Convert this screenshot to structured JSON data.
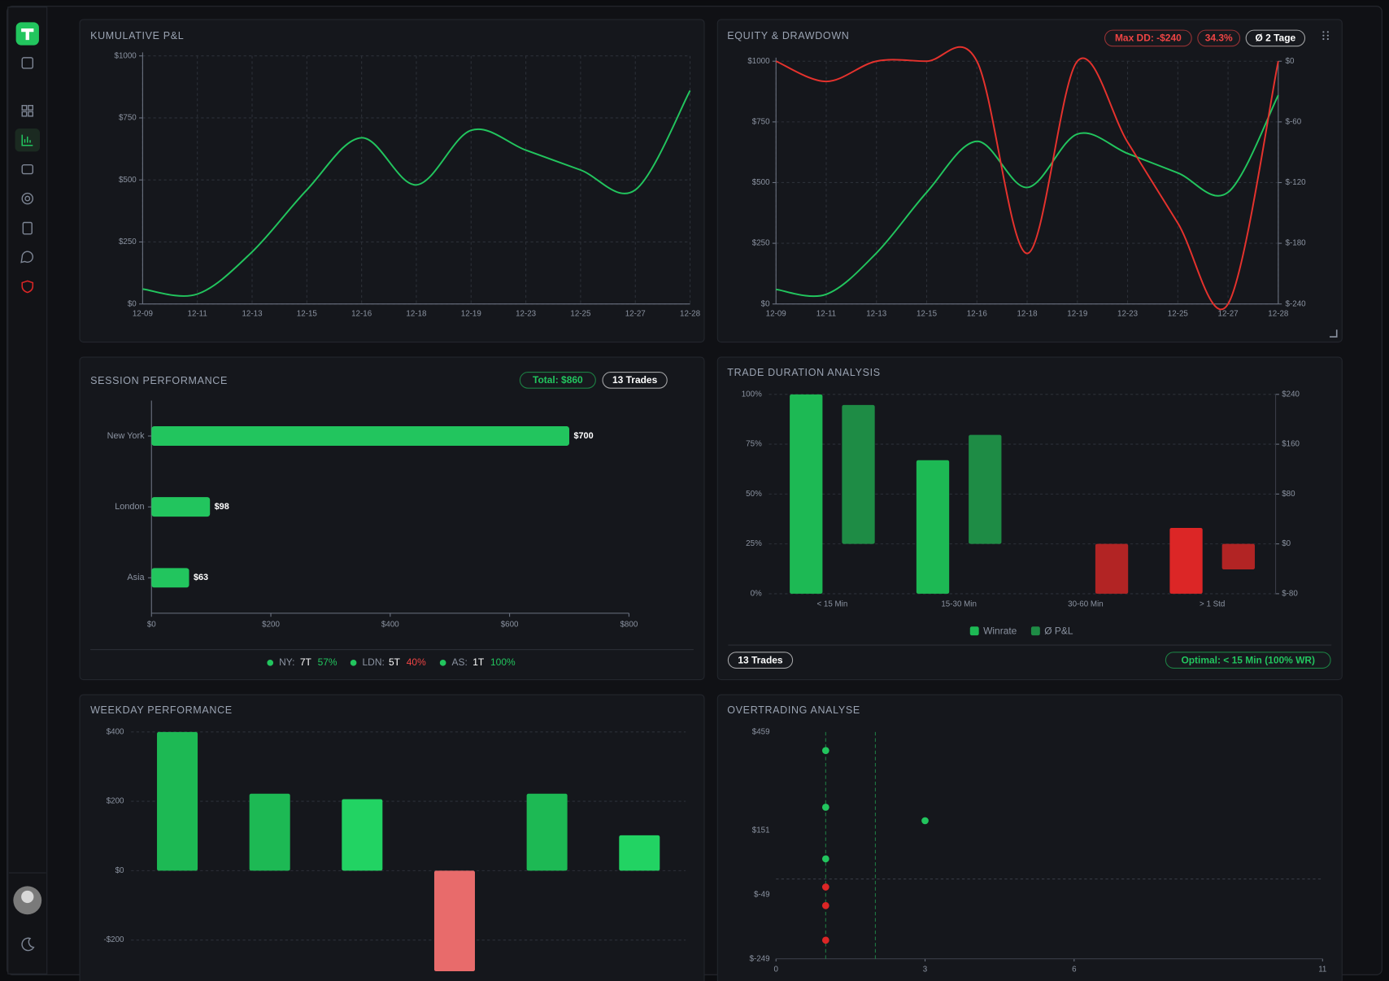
{
  "chart_data": [
    {
      "type": "line",
      "title": "KUMULATIVE P&L",
      "categories": [
        "12-09",
        "12-11",
        "12-13",
        "12-15",
        "12-16",
        "12-18",
        "12-19",
        "12-23",
        "12-25",
        "12-27",
        "12-28"
      ],
      "series": [
        {
          "color": "#22c55e",
          "values": [
            60,
            40,
            210,
            460,
            670,
            480,
            700,
            620,
            540,
            460,
            860
          ]
        }
      ],
      "ylim": [
        0,
        1000
      ],
      "yticks": [
        {
          "value": 0,
          "label": "$0"
        },
        {
          "value": 250,
          "label": "$250"
        },
        {
          "value": 500,
          "label": "$500"
        },
        {
          "value": 750,
          "label": "$750"
        },
        {
          "value": 1000,
          "label": "$1000"
        }
      ],
      "grid": true
    },
    {
      "type": "line",
      "title": "EQUITY & DRAWDOWN",
      "badges": [
        {
          "text": "Max DD: -$240",
          "color": "#ef4444"
        },
        {
          "text": "34.3%",
          "color": "#ef4444"
        },
        {
          "text": "Ø 2 Tage",
          "color": "#ffffff"
        }
      ],
      "categories": [
        "12-09",
        "12-11",
        "12-13",
        "12-15",
        "12-16",
        "12-18",
        "12-19",
        "12-23",
        "12-25",
        "12-27",
        "12-28"
      ],
      "series": [
        {
          "color": "#22c55e",
          "values": [
            60,
            40,
            210,
            460,
            670,
            480,
            700,
            620,
            540,
            460,
            860
          ]
        },
        {
          "color": "#e5322d",
          "axis": "y2",
          "values": [
            0,
            -20,
            0,
            0,
            0,
            -190,
            0,
            -80,
            -160,
            -240,
            0
          ]
        }
      ],
      "ylim": [
        0,
        1000
      ],
      "yticks": [
        {
          "value": 0,
          "label": "$0"
        },
        {
          "value": 250,
          "label": "$250"
        },
        {
          "value": 500,
          "label": "$500"
        },
        {
          "value": 750,
          "label": "$750"
        },
        {
          "value": 1000,
          "label": "$1000"
        }
      ],
      "y2lim": [
        -240,
        0
      ],
      "y2ticks": [
        {
          "value": 0,
          "label": "$0"
        },
        {
          "value": -60,
          "label": "$-60"
        },
        {
          "value": -120,
          "label": "$-120"
        },
        {
          "value": -180,
          "label": "$-180"
        },
        {
          "value": -240,
          "label": "$-240"
        }
      ],
      "grid": true
    },
    {
      "type": "barh",
      "title": "SESSION PERFORMANCE",
      "badges": [
        {
          "text": "Total: $860",
          "color": "#22c55e"
        },
        {
          "text": "13 Trades",
          "color": "#ffffff"
        }
      ],
      "categories": [
        "New York",
        "London",
        "Asia"
      ],
      "values": [
        700,
        98,
        63
      ],
      "value_labels": [
        "$700",
        "$98",
        "$63"
      ],
      "color": "#22c55e",
      "xlim": [
        0,
        800
      ],
      "xticks": [
        {
          "value": 0,
          "label": "$0"
        },
        {
          "value": 200,
          "label": "$200"
        },
        {
          "value": 400,
          "label": "$400"
        },
        {
          "value": 600,
          "label": "$600"
        },
        {
          "value": 800,
          "label": "$800"
        }
      ],
      "stats": [
        {
          "label": "NY:",
          "trades": "7T",
          "winrate": "57%",
          "color": "#22c55e"
        },
        {
          "label": "LDN:",
          "trades": "5T",
          "winrate": "40%",
          "color": "#ef4444"
        },
        {
          "label": "AS:",
          "trades": "1T",
          "winrate": "100%",
          "color": "#22c55e"
        }
      ]
    },
    {
      "type": "bar",
      "title": "TRADE DURATION ANALYSIS",
      "categories": [
        "< 15 Min",
        "15-30 Min",
        "30-60 Min",
        "> 1 Std"
      ],
      "series": [
        {
          "name": "Winrate",
          "color": "#1db954",
          "colors": [
            "#1db954",
            "#1db954",
            "#1db954",
            "#dc2626"
          ],
          "values": [
            100,
            67,
            0,
            33
          ]
        },
        {
          "name": "Ø P&L",
          "axis": "y2",
          "color": "#1e8c45",
          "colors": [
            "#1e8c45",
            "#1e8c45",
            "#b22424",
            "#b22424"
          ],
          "values": [
            223,
            175,
            -80,
            -41
          ]
        }
      ],
      "ylim": [
        0,
        100
      ],
      "yticks": [
        {
          "value": 0,
          "label": "0%"
        },
        {
          "value": 25,
          "label": "25%"
        },
        {
          "value": 50,
          "label": "50%"
        },
        {
          "value": 75,
          "label": "75%"
        },
        {
          "value": 100,
          "label": "100%"
        }
      ],
      "y2lim": [
        -80,
        240
      ],
      "y2ticks": [
        {
          "value": -80,
          "label": "$-80"
        },
        {
          "value": 0,
          "label": "$0"
        },
        {
          "value": 80,
          "label": "$80"
        },
        {
          "value": 160,
          "label": "$160"
        },
        {
          "value": 240,
          "label": "$240"
        }
      ],
      "grid": true,
      "legend": "bottom",
      "badges": [
        {
          "text": "13 Trades",
          "color": "#ffffff"
        },
        {
          "text": "Optimal: < 15 Min (100% WR)",
          "color": "#22c55e"
        }
      ]
    },
    {
      "type": "bar",
      "title": "WEEKDAY PERFORMANCE",
      "categories": [
        null,
        null,
        null,
        null,
        null,
        null
      ],
      "values": [
        400,
        222,
        206,
        -290,
        222,
        102
      ],
      "colors": [
        "#1db954",
        "#1db954",
        "#22d363",
        "#e86b6b",
        "#1db954",
        "#22d363"
      ],
      "ylim": [
        -300,
        400
      ],
      "yticks": [
        {
          "value": 400,
          "label": "$400"
        },
        {
          "value": 200,
          "label": "$200"
        },
        {
          "value": 0,
          "label": "$0"
        },
        {
          "value": -200,
          "label": "-$200"
        }
      ],
      "grid": true
    },
    {
      "type": "scatter",
      "title": "OVERTRADING ANALYSE",
      "x": [
        1,
        1,
        1,
        1,
        1,
        1,
        3
      ],
      "values": [
        401,
        224,
        63,
        -25,
        -83,
        -191,
        182
      ],
      "colors": [
        "#22c55e",
        "#22c55e",
        "#22c55e",
        "#dc2626",
        "#dc2626",
        "#dc2626",
        "#22c55e"
      ],
      "xlim": [
        0,
        11
      ],
      "xticks": [
        0,
        3,
        6,
        11
      ],
      "ylim": [
        -249,
        459
      ],
      "yticks": [
        {
          "value": 459,
          "label": "$459"
        },
        {
          "value": 151,
          "label": "$151"
        },
        {
          "value": -49,
          "label": "$-49"
        },
        {
          "value": -249,
          "label": "$-249"
        }
      ],
      "xrefs": [
        1,
        2
      ],
      "yref": 0
    }
  ]
}
